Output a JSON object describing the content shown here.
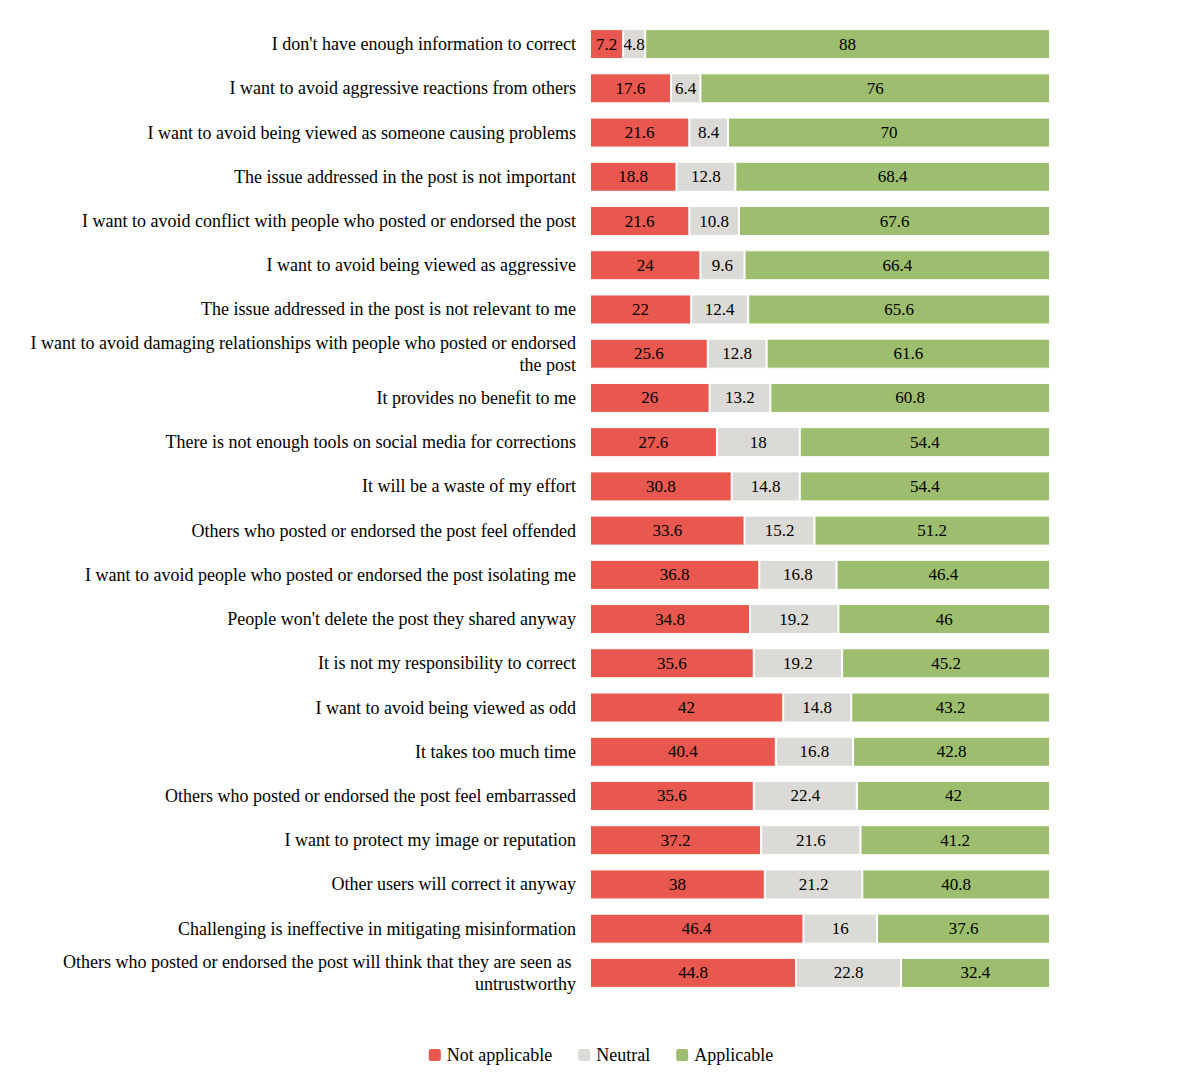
{
  "chart_data": {
    "type": "bar",
    "orientation": "horizontal",
    "stacked": true,
    "data_labels": true,
    "tick_labels": "y",
    "grid": false,
    "legend": "bottom",
    "xlim": [
      0,
      100
    ],
    "categories": [
      "I don't have enough information to correct",
      "I want to avoid aggressive reactions from others",
      "I want to avoid being viewed as someone causing problems",
      "The issue addressed in the post is not important",
      "I want to avoid conflict with people who posted or endorsed the post",
      "I want to avoid being viewed as aggressive",
      "The issue addressed in the post is not relevant to me",
      "I want to avoid damaging relationships with people who posted or endorsed the post",
      "It provides no benefit to me",
      "There is not enough tools on social media for corrections",
      "It will be a waste of my effort",
      "Others who posted or endorsed the post feel offended",
      "I want to avoid people who posted or endorsed the post isolating me",
      "People won't delete the post they shared anyway",
      "It is not my responsibility to correct",
      "I want to avoid being viewed as odd",
      "It takes too much time",
      "Others who posted or endorsed the post feel embarrassed",
      "I want to protect my image or reputation",
      "Other users will correct it anyway",
      "Challenging is ineffective in mitigating misinformation",
      "Others who posted or endorsed the post will think that they are seen as untrustworthy"
    ],
    "series": [
      {
        "name": "Not applicable",
        "color": "#e8584f",
        "values": [
          7.2,
          17.6,
          21.6,
          18.8,
          21.6,
          24,
          22,
          25.6,
          26,
          27.6,
          30.8,
          33.6,
          36.8,
          34.8,
          35.6,
          42,
          40.4,
          35.6,
          37.2,
          38,
          46.4,
          44.8
        ]
      },
      {
        "name": "Neutral",
        "color": "#dcdad6",
        "values": [
          4.8,
          6.4,
          8.4,
          12.8,
          10.8,
          9.6,
          12.4,
          12.8,
          13.2,
          18,
          14.8,
          15.2,
          16.8,
          19.2,
          19.2,
          14.8,
          16.8,
          22.4,
          21.6,
          21.2,
          16,
          22.8
        ]
      },
      {
        "name": "Applicable",
        "color": "#9dbe6e",
        "values": [
          88,
          76,
          70,
          68.4,
          67.6,
          66.4,
          65.6,
          61.6,
          60.8,
          54.4,
          54.4,
          51.2,
          46.4,
          46,
          45.2,
          43.2,
          42.8,
          42,
          41.2,
          40.8,
          37.6,
          32.4
        ]
      }
    ]
  }
}
